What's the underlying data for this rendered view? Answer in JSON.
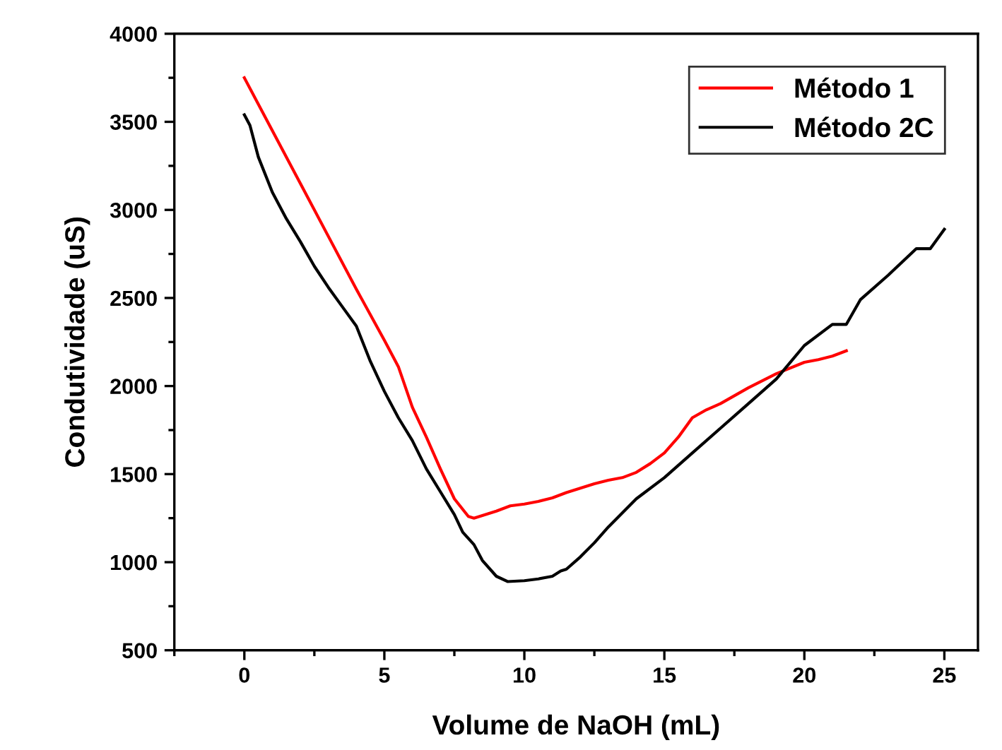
{
  "chart_data": {
    "type": "line",
    "xlabel": "Volume de NaOH (mL)",
    "ylabel": "Condutividade (uS)",
    "xlim": [
      -2.5,
      26.2
    ],
    "ylim": [
      500,
      4000
    ],
    "xticks": [
      0,
      5,
      10,
      15,
      20,
      25
    ],
    "yticks": [
      500,
      1000,
      1500,
      2000,
      2500,
      3000,
      3500,
      4000
    ],
    "grid": false,
    "legend": "top right",
    "marker": "none",
    "line_style": "solid",
    "series": [
      {
        "name": "Método 1",
        "color": "#ff0000",
        "x": [
          0,
          1,
          2,
          3,
          4,
          5,
          5.5,
          6,
          6.5,
          7,
          7.5,
          8,
          8.2,
          8.5,
          9,
          9.5,
          10,
          10.5,
          11,
          11.5,
          12,
          12.5,
          13,
          13.5,
          14,
          14.5,
          15,
          15.5,
          16,
          16.5,
          17,
          17.5,
          18,
          19,
          20,
          20.5,
          21,
          21.5
        ],
        "values": [
          3750,
          3450,
          3150,
          2850,
          2550,
          2260,
          2110,
          1880,
          1710,
          1530,
          1360,
          1260,
          1250,
          1265,
          1290,
          1320,
          1330,
          1345,
          1365,
          1395,
          1420,
          1445,
          1465,
          1480,
          1510,
          1560,
          1620,
          1710,
          1820,
          1865,
          1900,
          1945,
          1990,
          2070,
          2135,
          2150,
          2170,
          2200
        ]
      },
      {
        "name": "Método 2C",
        "color": "#000000",
        "x": [
          0,
          0.2,
          0.5,
          1,
          1.5,
          2,
          2.5,
          3,
          3.5,
          4,
          4.5,
          5,
          5.5,
          6,
          6.5,
          7,
          7.5,
          7.8,
          8.2,
          8.5,
          9,
          9.4,
          10,
          10.5,
          11,
          11.3,
          11.5,
          12,
          12.5,
          13,
          14,
          15,
          16,
          17,
          18,
          19,
          20,
          21,
          21.5,
          22,
          23,
          24,
          24.5,
          25
        ],
        "values": [
          3540,
          3480,
          3300,
          3100,
          2950,
          2820,
          2680,
          2560,
          2450,
          2340,
          2140,
          1970,
          1820,
          1690,
          1530,
          1400,
          1270,
          1170,
          1100,
          1010,
          920,
          890,
          895,
          905,
          920,
          950,
          960,
          1030,
          1110,
          1200,
          1360,
          1480,
          1620,
          1760,
          1900,
          2040,
          2230,
          2350,
          2350,
          2490,
          2630,
          2780,
          2780,
          2890
        ]
      }
    ]
  }
}
